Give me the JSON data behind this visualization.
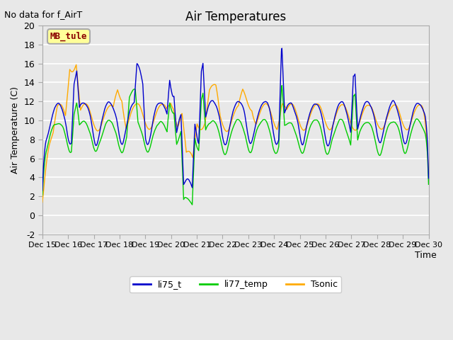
{
  "title": "Air Temperatures",
  "ylabel": "Air Temperature (C)",
  "xlabel": "Time",
  "annotation_text": "No data for f_AirT",
  "box_label": "MB_tule",
  "ylim": [
    -2,
    20
  ],
  "yticks": [
    -2,
    0,
    2,
    4,
    6,
    8,
    10,
    12,
    14,
    16,
    18,
    20
  ],
  "line_colors": {
    "li75_t": "#0000cc",
    "li77_temp": "#00cc00",
    "Tsonic": "#ffaa00"
  },
  "line_labels": [
    "li75_t",
    "li77_temp",
    "Tsonic"
  ],
  "bg_color": "#e8e8e8",
  "axes_bg": "#e8e8e8",
  "grid_color": "#ffffff",
  "tick_labels": [
    "Dec 15",
    "Dec 16",
    "Dec 17",
    "Dec 18",
    "Dec 19",
    "Dec 20",
    "Dec 21",
    "Dec 22",
    "Dec 23",
    "Dec 24",
    "Dec 25",
    "Dec 26",
    "Dec 27",
    "Dec 28",
    "Dec 29",
    "Dec 30"
  ]
}
